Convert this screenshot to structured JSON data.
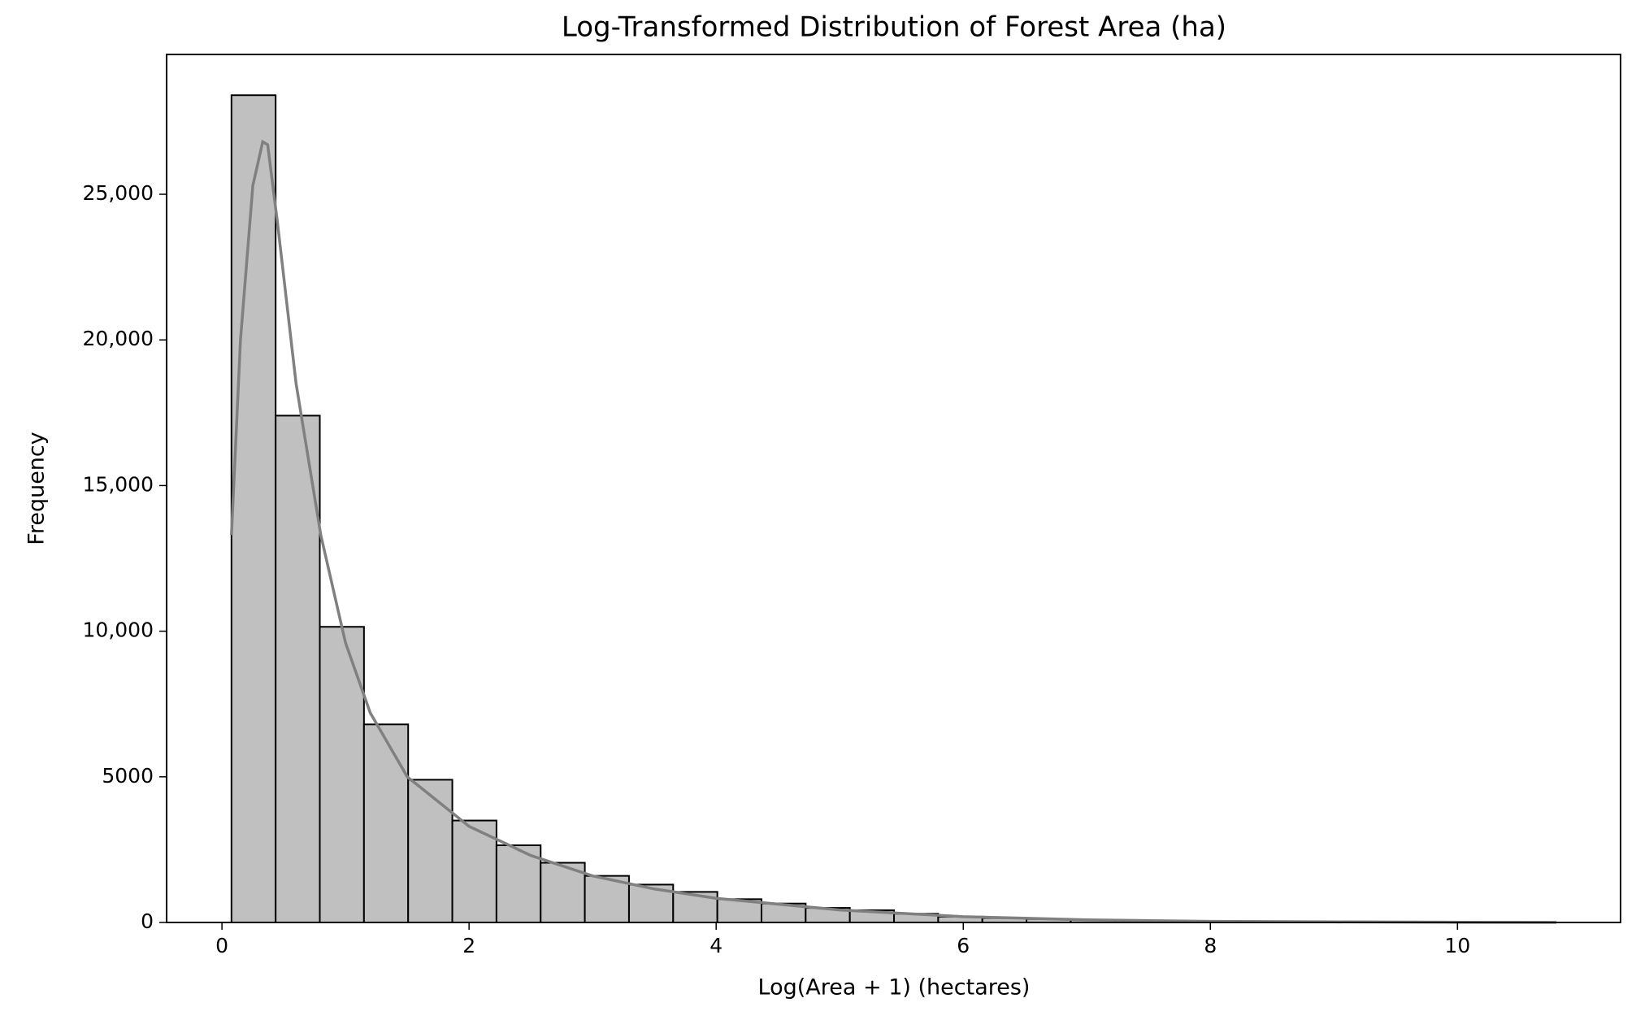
{
  "chart_data": {
    "type": "histogram",
    "title": "Log-Transformed Distribution of Forest Area (ha)",
    "xlabel": "Log(Area + 1) (hectares)",
    "ylabel": "Frequency",
    "bins": [
      0.077,
      0.4345,
      0.792,
      1.1495,
      1.507,
      1.8645,
      2.222,
      2.5795,
      2.937,
      3.2945,
      3.652,
      4.0095,
      4.367,
      4.7245,
      5.082,
      5.4395,
      5.797,
      6.1545,
      6.512,
      6.8695,
      7.227,
      7.5845,
      7.942,
      8.2995,
      8.657,
      9.0145,
      9.372,
      9.7295,
      10.087,
      10.4445,
      10.802
    ],
    "values": [
      28400,
      17400,
      10150,
      6800,
      4900,
      3500,
      2650,
      2050,
      1600,
      1300,
      1050,
      800,
      650,
      500,
      420,
      300,
      200,
      150,
      120,
      90,
      70,
      50,
      40,
      30,
      20,
      15,
      10,
      8,
      5,
      3
    ],
    "color": "#c0c0c0",
    "edgecolor": "#000000",
    "kde": {
      "color": "#808080",
      "x": [
        0.077,
        0.15,
        0.25,
        0.33,
        0.37,
        0.45,
        0.6,
        0.8,
        1.0,
        1.2,
        1.5,
        2.0,
        2.5,
        3.0,
        3.5,
        4.0,
        5.0,
        6.0,
        7.0,
        8.0,
        9.0,
        10.0,
        10.8
      ],
      "values": [
        13300,
        20000,
        25300,
        26800,
        26700,
        24000,
        18500,
        13300,
        9600,
        7200,
        5000,
        3300,
        2300,
        1600,
        1150,
        830,
        430,
        200,
        90,
        40,
        20,
        8,
        3
      ]
    },
    "xlim": [
      -0.448,
      11.32
    ],
    "ylim": [
      0,
      29800
    ],
    "xticks": [
      0,
      2,
      4,
      6,
      8,
      10
    ],
    "yticks": [
      0,
      5000,
      {
        "value": 10000,
        "label": "10,000"
      },
      {
        "value": 15000,
        "label": "15,000"
      },
      {
        "value": 20000,
        "label": "20,000"
      },
      {
        "value": 25000,
        "label": "25,000"
      }
    ]
  }
}
